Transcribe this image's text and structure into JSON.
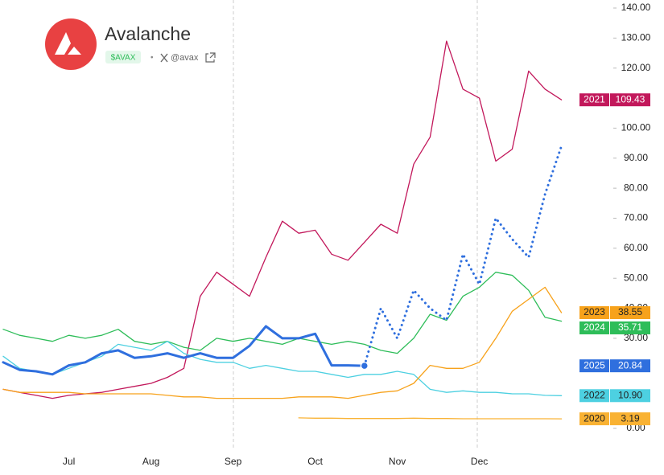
{
  "header": {
    "title": "Avalanche",
    "ticker": "$AVAX",
    "separator": "•",
    "handle": "@avax"
  },
  "chart_data": {
    "type": "line",
    "categories": [
      null,
      null,
      null,
      null,
      "Jul",
      null,
      null,
      null,
      null,
      "Aug",
      null,
      null,
      null,
      null,
      "Sep",
      null,
      null,
      null,
      null,
      "Oct",
      null,
      null,
      null,
      null,
      "Nov",
      null,
      null,
      null,
      null,
      "Dec",
      null,
      null,
      null,
      null,
      null
    ],
    "ylim": [
      -4,
      140
    ],
    "yticks": [
      {
        "value": 0,
        "label": "0.00"
      },
      {
        "value": 10,
        "label": "10.00"
      },
      {
        "value": 20,
        "label": "20.00"
      },
      {
        "value": 30,
        "label": "30.00"
      },
      {
        "value": 40,
        "label": "40.00"
      },
      {
        "value": 50,
        "label": "50.00"
      },
      {
        "value": 60,
        "label": "60.00"
      },
      {
        "value": 70,
        "label": "70.00"
      },
      {
        "value": 80,
        "label": "80.00"
      },
      {
        "value": 90,
        "label": "90.00"
      },
      {
        "value": 100,
        "label": "100.00"
      },
      {
        "value": 110,
        "label": "110.00"
      },
      {
        "value": 120,
        "label": "120.00"
      },
      {
        "value": 130,
        "label": "130.00"
      },
      {
        "value": 140,
        "label": "140.00"
      }
    ],
    "grid": false,
    "series": [
      {
        "name": "2021",
        "color": "#c2185b",
        "width": 1.3,
        "values": [
          13,
          12,
          11,
          10,
          11,
          11.5,
          12,
          13,
          14,
          15,
          17,
          20,
          44,
          52,
          48,
          44,
          57,
          69,
          65,
          66,
          58,
          56,
          62,
          68,
          65,
          88,
          97,
          129,
          113,
          110,
          89,
          93,
          119,
          113,
          109.43
        ],
        "value_labels": [
          null,
          null,
          null,
          null,
          null,
          null,
          null,
          null,
          null,
          null,
          null,
          null,
          null,
          null,
          null,
          null,
          null,
          null,
          null,
          null,
          null,
          null,
          null,
          null,
          null,
          null,
          null,
          null,
          null,
          null,
          null,
          null,
          null,
          null,
          "109.43"
        ]
      },
      {
        "name": "2024",
        "color": "#2ebd59",
        "width": 1.3,
        "values": [
          33,
          31,
          30,
          29,
          31,
          30,
          31,
          33,
          29,
          28,
          29,
          27,
          26,
          30,
          29,
          30,
          29,
          28,
          30,
          29,
          28,
          29,
          28,
          26,
          25,
          30,
          38,
          36,
          44,
          47,
          52,
          51,
          46,
          37,
          35.71
        ],
        "value_labels": [
          null,
          null,
          null,
          null,
          null,
          null,
          null,
          null,
          null,
          null,
          null,
          null,
          null,
          null,
          null,
          null,
          null,
          null,
          null,
          null,
          null,
          null,
          null,
          null,
          null,
          null,
          null,
          null,
          null,
          null,
          null,
          null,
          null,
          null,
          "35.71"
        ]
      },
      {
        "name": "2022",
        "color": "#4dd0e1",
        "width": 1.3,
        "values": [
          24,
          20,
          19,
          18,
          20,
          22,
          24,
          28,
          27,
          26,
          29,
          25,
          23,
          22,
          22,
          20,
          21,
          20,
          19,
          19,
          18,
          17,
          18,
          18,
          19,
          18,
          13,
          12,
          12.5,
          12,
          12,
          11.5,
          11.5,
          11,
          10.9
        ],
        "value_labels": [
          null,
          null,
          null,
          null,
          null,
          null,
          null,
          null,
          null,
          null,
          null,
          null,
          null,
          null,
          null,
          null,
          null,
          null,
          null,
          null,
          null,
          null,
          null,
          null,
          null,
          null,
          null,
          null,
          null,
          null,
          null,
          null,
          null,
          null,
          "10.90"
        ]
      },
      {
        "name": "2023",
        "color": "#f7a21b",
        "width": 1.3,
        "values": [
          13,
          12,
          12,
          12,
          12,
          11.5,
          11.5,
          11.5,
          11.5,
          11.5,
          11,
          10.5,
          10.5,
          10,
          10,
          10,
          10,
          10,
          10.5,
          10.5,
          10.5,
          10,
          11,
          12,
          12.5,
          15,
          21,
          20,
          20,
          22,
          30,
          39,
          43,
          47,
          38.55
        ],
        "value_labels": [
          null,
          null,
          null,
          null,
          null,
          null,
          null,
          null,
          null,
          null,
          null,
          null,
          null,
          null,
          null,
          null,
          null,
          null,
          null,
          null,
          null,
          null,
          null,
          null,
          null,
          null,
          null,
          null,
          null,
          null,
          null,
          null,
          null,
          null,
          "38.55"
        ]
      },
      {
        "name": "2020",
        "color": "#f9b233",
        "width": 1.3,
        "values": [
          null,
          null,
          null,
          null,
          null,
          null,
          null,
          null,
          null,
          null,
          null,
          null,
          null,
          null,
          null,
          null,
          null,
          null,
          3.5,
          3.4,
          3.4,
          3.3,
          3.3,
          3.3,
          3.3,
          3.4,
          3.3,
          3.3,
          3.2,
          3.2,
          3.2,
          3.2,
          3.2,
          3.2,
          3.19
        ],
        "value_labels": [
          null,
          null,
          null,
          null,
          null,
          null,
          null,
          null,
          null,
          null,
          null,
          null,
          null,
          null,
          null,
          null,
          null,
          null,
          null,
          null,
          null,
          null,
          null,
          null,
          null,
          null,
          null,
          null,
          null,
          null,
          null,
          null,
          null,
          null,
          "3.19"
        ]
      },
      {
        "name": "2025",
        "color": "#2f6fde",
        "width": 3,
        "end_marker": true,
        "values": [
          22,
          19.5,
          19,
          18,
          21,
          22,
          25,
          26,
          23.5,
          24,
          25,
          23.5,
          25,
          23.5,
          23.5,
          27.5,
          34,
          30,
          30,
          31.5,
          21,
          21,
          20.84,
          null,
          null,
          null,
          null,
          null,
          null,
          null,
          null,
          null,
          null,
          null,
          null
        ],
        "value_labels": [
          null,
          null,
          null,
          null,
          null,
          null,
          null,
          null,
          null,
          null,
          null,
          null,
          null,
          null,
          null,
          null,
          null,
          null,
          null,
          null,
          null,
          null,
          "20.84",
          null,
          null,
          null,
          null,
          null,
          null,
          null,
          null,
          null,
          null,
          null,
          null
        ]
      },
      {
        "color": "#2f6fde",
        "width": 3,
        "dotted": true,
        "values": [
          null,
          null,
          null,
          null,
          null,
          null,
          null,
          null,
          null,
          null,
          null,
          null,
          null,
          null,
          null,
          null,
          null,
          null,
          null,
          null,
          null,
          null,
          20.84,
          40,
          30,
          46,
          40,
          36,
          58,
          48,
          70,
          63,
          57,
          78,
          94
        ]
      }
    ]
  }
}
